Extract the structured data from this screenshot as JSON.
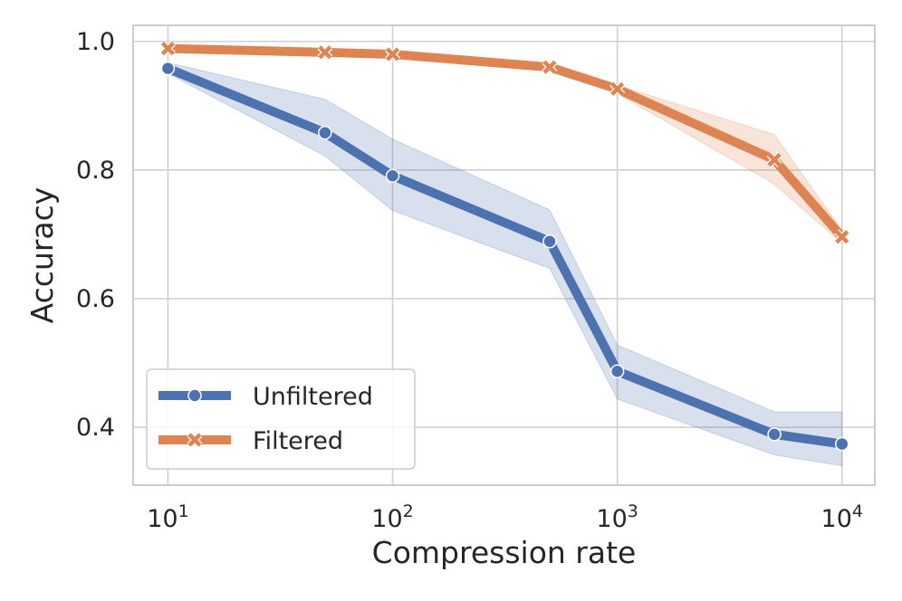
{
  "chart_data": {
    "type": "line",
    "title": "",
    "xlabel": "Compression rate",
    "ylabel": "Accuracy",
    "xscale": "log",
    "xlim": [
      7,
      14000
    ],
    "ylim": [
      0.31,
      1.025
    ],
    "grid": true,
    "legend_position": "bottom-left",
    "x": [
      10,
      50,
      100,
      500,
      1000,
      5000,
      10000
    ],
    "x_ticks": [
      {
        "value": 10,
        "base": "10",
        "exp": "1"
      },
      {
        "value": 100,
        "base": "10",
        "exp": "2"
      },
      {
        "value": 1000,
        "base": "10",
        "exp": "3"
      },
      {
        "value": 10000,
        "base": "10",
        "exp": "4"
      }
    ],
    "y_ticks": [
      {
        "value": 0.4,
        "label": "0.4"
      },
      {
        "value": 0.6,
        "label": "0.6"
      },
      {
        "value": 0.8,
        "label": "0.8"
      },
      {
        "value": 1.0,
        "label": "1.0"
      }
    ],
    "series": [
      {
        "name": "Unfiltered",
        "color": "#4c72b0",
        "marker": "circle",
        "values": [
          0.958,
          0.858,
          0.791,
          0.689,
          0.487,
          0.389,
          0.374
        ],
        "lower": [
          0.95,
          0.822,
          0.737,
          0.647,
          0.444,
          0.357,
          0.34
        ],
        "upper": [
          0.967,
          0.91,
          0.848,
          0.738,
          0.528,
          0.424,
          0.424
        ]
      },
      {
        "name": "Filtered",
        "color": "#dd8452",
        "marker": "x",
        "values": [
          0.989,
          0.983,
          0.98,
          0.96,
          0.926,
          0.816,
          0.696
        ],
        "lower": [
          0.986,
          0.98,
          0.977,
          0.956,
          0.919,
          0.778,
          0.686
        ],
        "upper": [
          0.992,
          0.986,
          0.983,
          0.964,
          0.932,
          0.855,
          0.706
        ]
      }
    ]
  }
}
